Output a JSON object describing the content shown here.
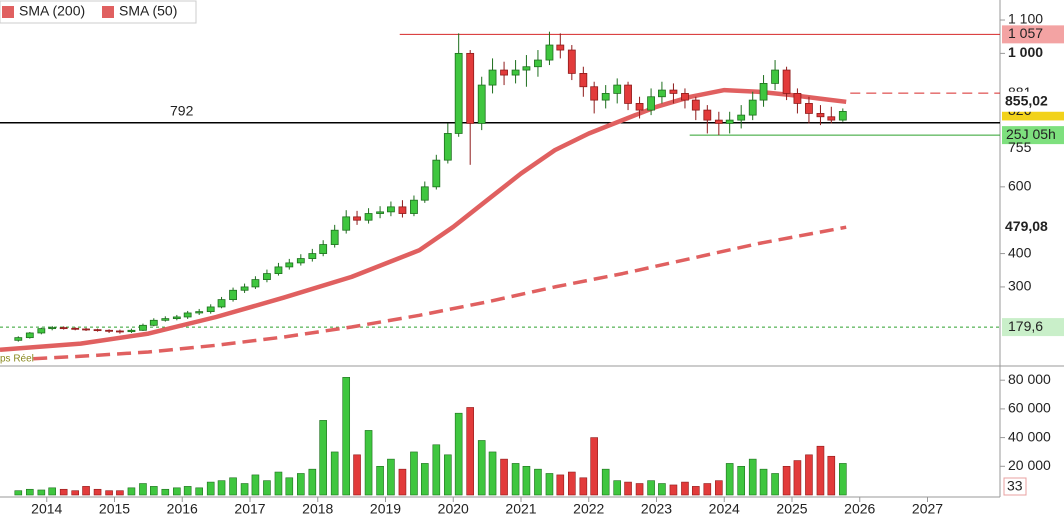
{
  "chart_data": {
    "type": "candlestick",
    "x": [
      2013.58,
      2013.75,
      2013.92,
      2014.08,
      2014.25,
      2014.42,
      2014.58,
      2014.75,
      2014.92,
      2015.08,
      2015.25,
      2015.42,
      2015.58,
      2015.75,
      2015.92,
      2016.08,
      2016.25,
      2016.42,
      2016.58,
      2016.75,
      2016.92,
      2017.08,
      2017.25,
      2017.42,
      2017.58,
      2017.75,
      2017.92,
      2018.08,
      2018.25,
      2018.42,
      2018.58,
      2018.75,
      2018.92,
      2019.08,
      2019.25,
      2019.42,
      2019.58,
      2019.75,
      2019.92,
      2020.08,
      2020.25,
      2020.42,
      2020.58,
      2020.75,
      2020.92,
      2021.08,
      2021.25,
      2021.42,
      2021.58,
      2021.75,
      2021.92,
      2022.08,
      2022.25,
      2022.42,
      2022.58,
      2022.75,
      2022.92,
      2023.08,
      2023.25,
      2023.42,
      2023.58,
      2023.75,
      2023.92,
      2024.08,
      2024.25,
      2024.42,
      2024.58,
      2024.75,
      2024.92,
      2025.08,
      2025.25,
      2025.42,
      2025.58,
      2025.75
    ],
    "open": [
      140,
      148,
      162,
      175,
      178,
      176,
      174,
      172,
      170,
      168,
      166,
      170,
      185,
      200,
      205,
      210,
      222,
      226,
      240,
      262,
      290,
      300,
      322,
      340,
      360,
      372,
      385,
      400,
      427,
      470,
      510,
      500,
      520,
      525,
      540,
      520,
      560,
      600,
      680,
      760,
      1000,
      790,
      905,
      950,
      935,
      950,
      960,
      980,
      1025,
      1010,
      940,
      900,
      860,
      880,
      905,
      850,
      830,
      870,
      890,
      880,
      860,
      830,
      800,
      790,
      800,
      815,
      860,
      910,
      950,
      880,
      850,
      820,
      810,
      800
    ],
    "high": [
      152,
      165,
      178,
      183,
      182,
      179,
      177,
      175,
      173,
      172,
      175,
      190,
      206,
      212,
      216,
      228,
      234,
      248,
      270,
      298,
      310,
      332,
      352,
      372,
      384,
      398,
      414,
      440,
      486,
      530,
      528,
      536,
      542,
      556,
      560,
      574,
      616,
      696,
      790,
      1060,
      1010,
      930,
      985,
      975,
      980,
      995,
      1010,
      1065,
      1060,
      1025,
      960,
      915,
      905,
      925,
      915,
      870,
      895,
      915,
      910,
      895,
      870,
      845,
      825,
      825,
      845,
      885,
      935,
      980,
      960,
      895,
      870,
      845,
      840,
      835
    ],
    "low": [
      136,
      145,
      158,
      170,
      172,
      170,
      168,
      166,
      162,
      160,
      162,
      168,
      182,
      196,
      200,
      204,
      216,
      220,
      236,
      256,
      282,
      294,
      314,
      334,
      352,
      364,
      376,
      392,
      418,
      460,
      486,
      490,
      506,
      512,
      508,
      512,
      552,
      592,
      670,
      750,
      666,
      770,
      880,
      905,
      910,
      900,
      930,
      965,
      985,
      920,
      870,
      820,
      835,
      850,
      830,
      805,
      815,
      850,
      850,
      835,
      800,
      760,
      755,
      760,
      775,
      800,
      840,
      890,
      860,
      820,
      790,
      785,
      790,
      795
    ],
    "close": [
      148,
      162,
      175,
      178,
      176,
      174,
      172,
      170,
      168,
      166,
      170,
      185,
      200,
      205,
      210,
      222,
      226,
      240,
      262,
      290,
      300,
      322,
      340,
      360,
      372,
      385,
      400,
      427,
      470,
      510,
      500,
      520,
      525,
      540,
      520,
      560,
      600,
      680,
      760,
      1000,
      790,
      905,
      950,
      935,
      950,
      960,
      980,
      1025,
      1010,
      940,
      900,
      860,
      880,
      905,
      850,
      830,
      870,
      890,
      880,
      860,
      830,
      800,
      790,
      800,
      815,
      860,
      910,
      950,
      880,
      850,
      820,
      810,
      800,
      826
    ],
    "volume": [
      3000,
      4000,
      3500,
      5000,
      4000,
      3000,
      6000,
      4000,
      3000,
      3000,
      5000,
      8000,
      6000,
      4000,
      5000,
      6000,
      5000,
      9000,
      10000,
      12000,
      8000,
      14000,
      10000,
      16000,
      12000,
      15000,
      18000,
      52000,
      30000,
      82000,
      28000,
      45000,
      20000,
      25000,
      18000,
      30000,
      22000,
      35000,
      28000,
      57000,
      61000,
      38000,
      30000,
      25000,
      22000,
      20000,
      18000,
      15000,
      14000,
      16000,
      12000,
      40000,
      18000,
      10000,
      9000,
      8000,
      10000,
      8000,
      7000,
      9000,
      6000,
      8000,
      10000,
      22000,
      20000,
      25000,
      18000,
      15000,
      20000,
      24000,
      28000,
      34000,
      27000,
      22000
    ],
    "up_color": "#3fc63f",
    "down_color": "#e23b3b",
    "series": [
      {
        "name": "SMA (200)",
        "color": "#e06060",
        "style": "dashed",
        "last_label": "479,08",
        "x": [
          2013.8,
          2014.5,
          2015.5,
          2016.5,
          2017.5,
          2018.5,
          2019.5,
          2020.5,
          2021.5,
          2022.5,
          2023.5,
          2024.5,
          2025.3,
          2025.8
        ],
        "values": [
          85,
          92,
          105,
          125,
          150,
          180,
          215,
          255,
          300,
          340,
          385,
          430,
          460,
          479.08
        ]
      },
      {
        "name": "SMA (50)",
        "color": "#e06060",
        "style": "solid",
        "last_label": "855,02",
        "x": [
          2013.31,
          2014.5,
          2015.5,
          2016.5,
          2017.5,
          2018.5,
          2019.5,
          2020.0,
          2020.5,
          2021.0,
          2021.5,
          2022.0,
          2022.5,
          2023.0,
          2023.5,
          2024.0,
          2024.5,
          2025.0,
          2025.5,
          2025.8
        ],
        "values": [
          112,
          130,
          160,
          210,
          268,
          330,
          410,
          480,
          560,
          640,
          710,
          760,
          800,
          840,
          870,
          890,
          885,
          875,
          862,
          855.02
        ]
      }
    ],
    "levels": [
      {
        "value": 1057,
        "label": "1 057",
        "color": "#d62728",
        "style": "solid",
        "start": 2019.21,
        "tag_bg": "#f3a3a3"
      },
      {
        "value": 881,
        "label": "881",
        "color": "#d62728",
        "style": "dashed",
        "start": 2025.86
      },
      {
        "value": 826,
        "label": "826",
        "color": "#d62728",
        "style": "none",
        "tag_bg": "#f2d21b"
      },
      {
        "value": 792,
        "label": "792",
        "color": "#000000",
        "style": "solid",
        "start": 2013.31,
        "label_side": "left"
      },
      {
        "value": 755,
        "label": "755",
        "color": "#2ca02c",
        "style": "solid",
        "start": 2023.49,
        "countdown": "25J 05h"
      },
      {
        "value": 179.6,
        "label": "179,6",
        "color": "#2ca02c",
        "style": "dashed",
        "start": 2013.31,
        "tag_bg": "#c9efc9"
      }
    ],
    "xlim": [
      2013.31,
      2028.07
    ],
    "xticks": [
      2014,
      2015,
      2016,
      2017,
      2018,
      2019,
      2020,
      2021,
      2022,
      2023,
      2024,
      2025,
      2026,
      2027
    ],
    "ylim": [
      66,
      1148
    ],
    "yticks": [
      300,
      400,
      600,
      {
        "value": 1000,
        "label": "1 000"
      },
      {
        "value": 1100,
        "label": "1 100"
      }
    ],
    "volume_ylim": [
      0,
      88500
    ],
    "volume_yticks": [
      {
        "value": 20000,
        "label": "20 000"
      },
      {
        "value": 40000,
        "label": "40 000"
      },
      {
        "value": 60000,
        "label": "60 000"
      },
      {
        "value": 80000,
        "label": "80 000"
      }
    ],
    "volume_tag": "33",
    "source_note": "ps Réel"
  }
}
